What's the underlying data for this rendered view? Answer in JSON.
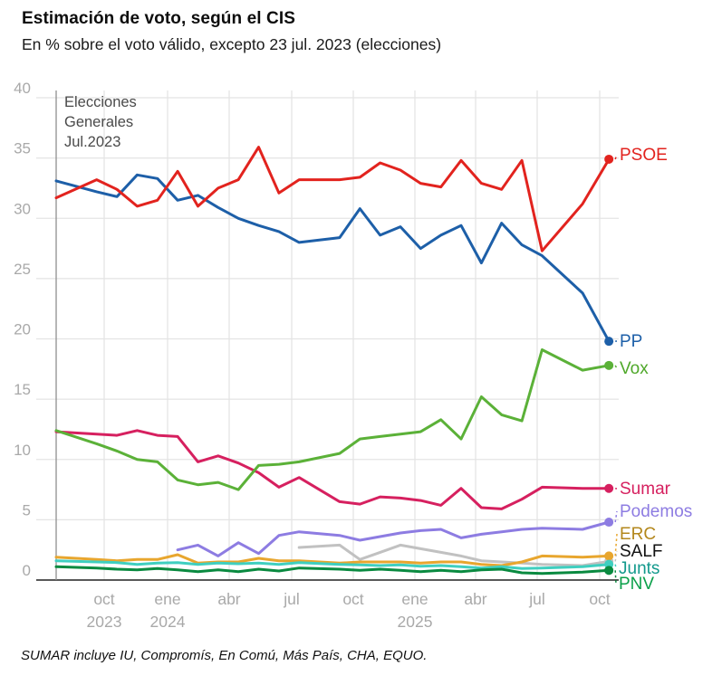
{
  "header": {
    "title": "Estimación de voto, según el CIS",
    "subtitle": "En % sobre el voto válido, excepto 23 jul. 2023 (elecciones)"
  },
  "footnote": "SUMAR incluye IU, Compromís, En Comú, Más País, CHA, EQUO.",
  "chart_data": {
    "type": "line",
    "title": "Estimación de voto, según el CIS",
    "ylabel": "% sobre el voto válido",
    "ylim": [
      0,
      40
    ],
    "y_ticks": [
      0,
      5,
      10,
      15,
      20,
      25,
      30,
      35,
      40
    ],
    "grid": true,
    "annotation": {
      "lines": [
        "Elecciones",
        "Generales",
        "Jul.2023"
      ]
    },
    "x_tick_labels": [
      {
        "month": "oct",
        "year": "2023"
      },
      {
        "month": "ene",
        "year": "2024"
      },
      {
        "month": "abr",
        "year": ""
      },
      {
        "month": "jul",
        "year": ""
      },
      {
        "month": "oct",
        "year": ""
      },
      {
        "month": "ene",
        "year": "2025"
      },
      {
        "month": "abr",
        "year": ""
      },
      {
        "month": "jul",
        "year": ""
      },
      {
        "month": "oct",
        "year": ""
      }
    ],
    "dates": [
      "23 jul. 2023",
      "sep. 2023",
      "oct. 2023",
      "nov. 2023",
      "dic. 2023",
      "ene. 2024",
      "feb. 2024",
      "mar. 2024",
      "abr. 2024",
      "may. 2024",
      "jun. 2024",
      "jul. 2024",
      "sep. 2024",
      "oct. 2024",
      "nov. 2024",
      "dic. 2024",
      "ene. 2025",
      "feb. 2025",
      "mar. 2025",
      "abr. 2025",
      "may. 2025",
      "jun. 2025",
      "jul. 2025",
      "sep. 2025",
      "oct. 2025"
    ],
    "month_offsets": [
      0,
      2,
      3,
      4,
      5,
      6,
      7,
      8,
      9,
      10,
      11,
      12,
      14,
      15,
      16,
      17,
      18,
      19,
      20,
      21,
      22,
      23,
      24,
      26,
      27.3
    ],
    "series": [
      {
        "name": "SALF",
        "color": "#c1c1c1",
        "label_color": "#111111",
        "values": [
          null,
          null,
          null,
          null,
          null,
          null,
          null,
          null,
          null,
          null,
          null,
          2.7,
          2.9,
          1.7,
          2.3,
          2.9,
          2.6,
          2.3,
          2.0,
          1.6,
          1.5,
          1.4,
          1.3,
          1.2,
          1.55
        ]
      },
      {
        "name": "ERC",
        "color": "#e8a62e",
        "label_color": "#b3871c",
        "values": [
          1.9,
          1.7,
          1.6,
          1.7,
          1.7,
          2.1,
          1.4,
          1.5,
          1.5,
          1.8,
          1.6,
          1.6,
          1.4,
          1.5,
          1.5,
          1.5,
          1.4,
          1.5,
          1.5,
          1.3,
          1.2,
          1.5,
          2.0,
          1.9,
          2.0
        ]
      },
      {
        "name": "Junts",
        "color": "#3fcfc0",
        "label_color": "#12998c",
        "values": [
          1.6,
          1.5,
          1.45,
          1.3,
          1.4,
          1.45,
          1.3,
          1.4,
          1.35,
          1.4,
          1.3,
          1.45,
          1.3,
          1.25,
          1.2,
          1.25,
          1.15,
          1.2,
          1.1,
          1.0,
          1.1,
          0.95,
          1.0,
          1.1,
          1.3
        ]
      },
      {
        "name": "PNV",
        "color": "#0a8a40",
        "label_color": "#0ba04a",
        "values": [
          1.1,
          1.0,
          0.9,
          0.85,
          0.95,
          0.85,
          0.7,
          0.85,
          0.7,
          0.9,
          0.75,
          1.0,
          0.9,
          0.8,
          0.9,
          0.8,
          0.7,
          0.8,
          0.7,
          0.85,
          0.9,
          0.6,
          0.55,
          0.65,
          0.8
        ]
      },
      {
        "name": "Podemos",
        "color": "#8d7ce2",
        "label_color": "#8d7ce2",
        "values": [
          null,
          null,
          null,
          null,
          null,
          2.5,
          2.9,
          2.0,
          3.1,
          2.2,
          3.7,
          4.0,
          3.7,
          3.3,
          3.6,
          3.9,
          4.1,
          4.2,
          3.5,
          3.8,
          4.0,
          4.2,
          4.3,
          4.2,
          4.8
        ]
      },
      {
        "name": "Sumar",
        "color": "#d6205f",
        "label_color": "#d6205f",
        "values": [
          12.3,
          12.1,
          12.0,
          12.4,
          12.0,
          11.9,
          9.8,
          10.3,
          9.7,
          8.9,
          7.7,
          8.5,
          6.5,
          6.3,
          6.9,
          6.8,
          6.6,
          6.2,
          7.6,
          6.0,
          5.9,
          6.7,
          7.7,
          7.6,
          7.6
        ]
      },
      {
        "name": "Vox",
        "color": "#5bb138",
        "label_color": "#4fa82a",
        "values": [
          12.4,
          11.3,
          10.7,
          10.0,
          9.8,
          8.3,
          7.9,
          8.1,
          7.5,
          9.5,
          9.6,
          9.8,
          10.5,
          11.7,
          11.9,
          12.1,
          12.3,
          13.3,
          11.7,
          15.2,
          13.7,
          13.2,
          19.1,
          17.4,
          17.8
        ]
      },
      {
        "name": "PP",
        "color": "#1d5fa8",
        "label_color": "#1d5fa8",
        "values": [
          33.1,
          32.2,
          31.8,
          33.6,
          33.3,
          31.5,
          31.9,
          30.9,
          30.0,
          29.4,
          28.9,
          28.0,
          28.4,
          30.8,
          28.6,
          29.3,
          27.5,
          28.6,
          29.4,
          26.3,
          29.6,
          27.8,
          26.9,
          23.8,
          19.8
        ]
      },
      {
        "name": "PSOE",
        "color": "#e2231e",
        "label_color": "#e2231e",
        "values": [
          31.7,
          33.2,
          32.4,
          31.0,
          31.5,
          33.9,
          31.0,
          32.5,
          33.2,
          35.9,
          32.1,
          33.2,
          33.2,
          33.4,
          34.6,
          34.0,
          32.9,
          32.6,
          34.8,
          32.9,
          32.4,
          34.8,
          27.3,
          31.2,
          34.9
        ]
      }
    ],
    "colors": {
      "grid": "#e4e4e4",
      "axis": "#222222",
      "tick_labels": "#a9a9a9",
      "annotation_text": "#4a4a4a",
      "election_line": "#8f8f8f"
    }
  }
}
